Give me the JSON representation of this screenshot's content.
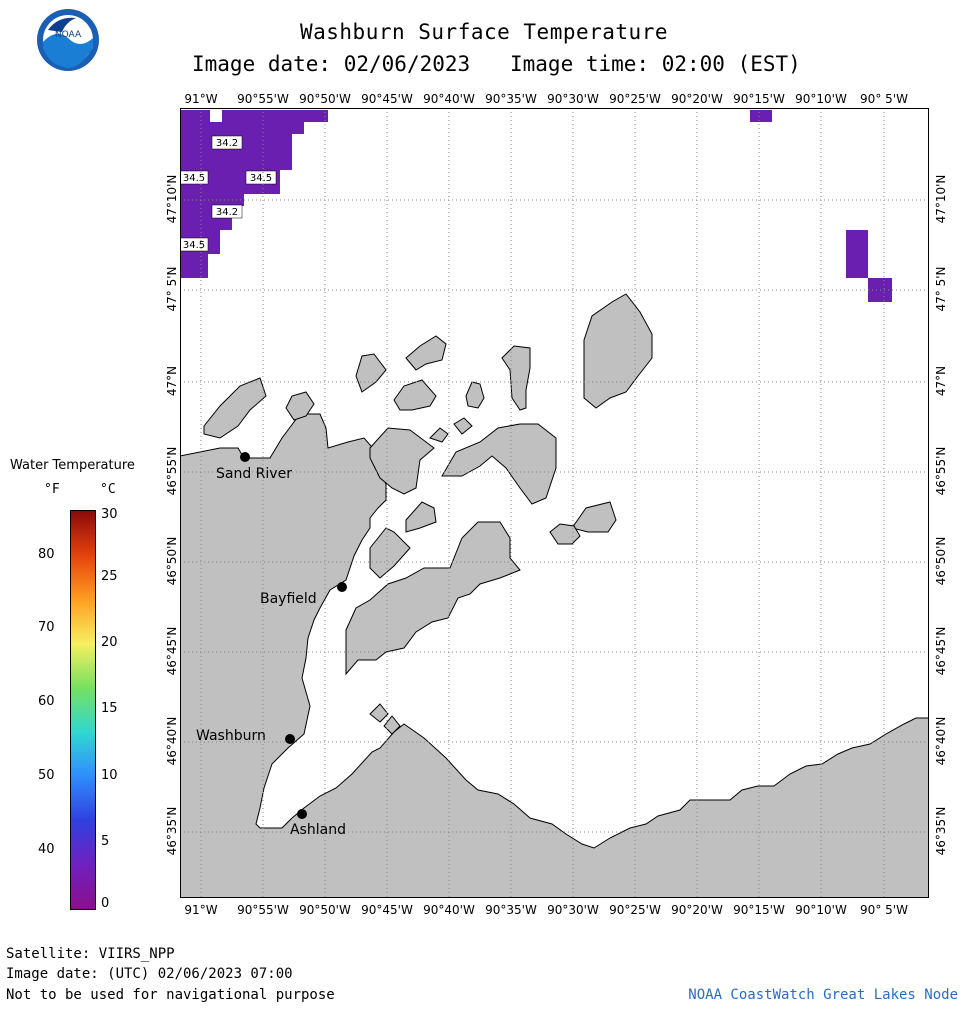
{
  "header": {
    "title": "Washburn Surface Temperature",
    "image_date_label": "Image date:",
    "image_date": "02/06/2023",
    "image_time_label": "Image time:",
    "image_time": "02:00 (EST)"
  },
  "legend": {
    "title": "Water Temperature",
    "unit_f": "°F",
    "unit_c": "°C",
    "f_ticks": [
      "80",
      "70",
      "60",
      "50",
      "40"
    ],
    "c_ticks": [
      "30",
      "25",
      "20",
      "15",
      "10",
      "5",
      "0"
    ],
    "colors": [
      "#8b0a0a",
      "#e4420c",
      "#ff9d20",
      "#f7f060",
      "#76e060",
      "#2fd8d0",
      "#2f8cff",
      "#3040e0",
      "#7020c0",
      "#8a108a"
    ]
  },
  "axes": {
    "lon_labels": [
      "91°W",
      "90°55'W",
      "90°50'W",
      "90°45'W",
      "90°40'W",
      "90°35'W",
      "90°30'W",
      "90°25'W",
      "90°20'W",
      "90°15'W",
      "90°10'W",
      "90° 5'W"
    ],
    "lat_labels": [
      "47°10'N",
      "47° 5'N",
      "47°N",
      "46°55'N",
      "46°50'N",
      "46°45'N",
      "46°40'N",
      "46°35'N"
    ]
  },
  "map": {
    "land_color": "#c0c0c0",
    "water_color": "#ffffff",
    "cold_water_color": "#6a1fb0",
    "temp_labels": [
      "34.2",
      "34.5",
      "34.5",
      "34.2",
      "34.5"
    ]
  },
  "cities": [
    {
      "name": "Sand River"
    },
    {
      "name": "Bayfield"
    },
    {
      "name": "Washburn"
    },
    {
      "name": "Ashland"
    }
  ],
  "footer": {
    "satellite": "Satellite: VIIRS_NPP",
    "utc_date": "Image date: (UTC) 02/06/2023  07:00",
    "disclaimer": "Not to be used for navigational purpose",
    "credit": "NOAA CoastWatch Great Lakes Node"
  }
}
